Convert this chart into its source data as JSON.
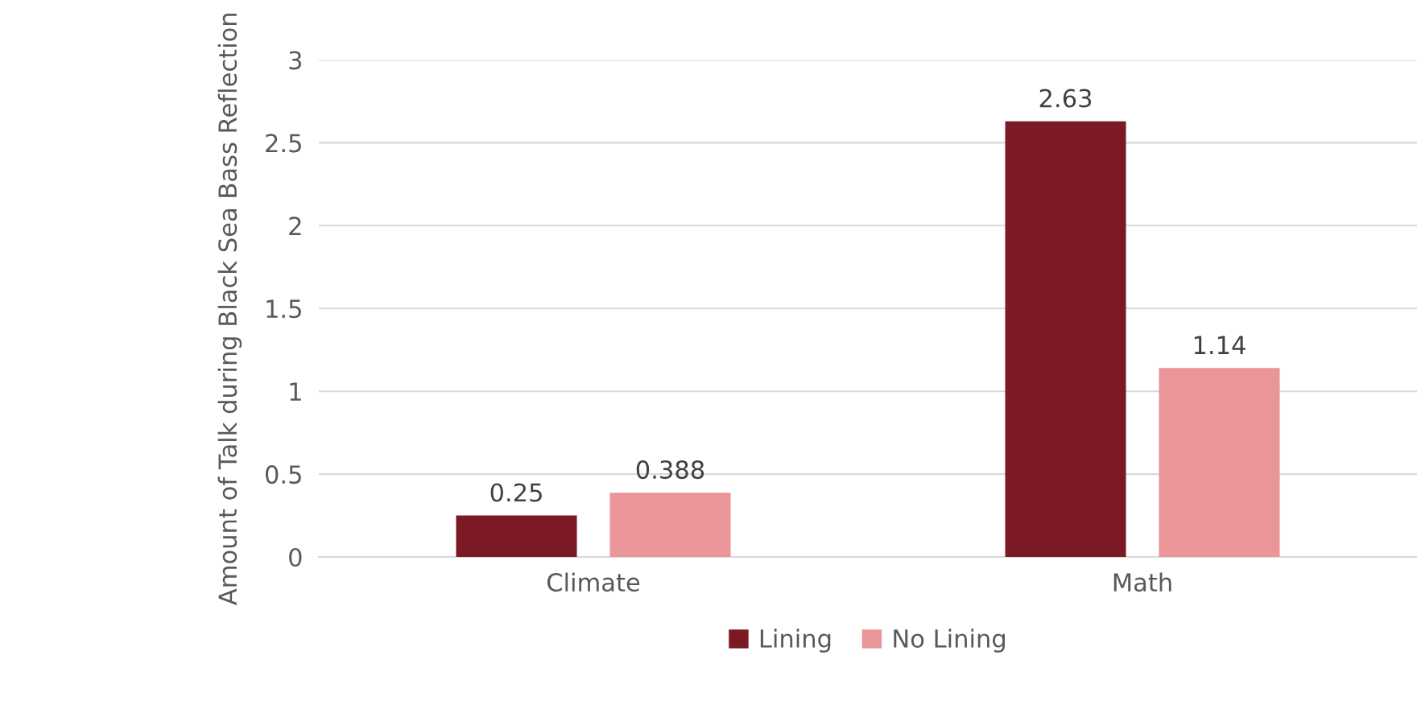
{
  "chart_data": {
    "type": "bar",
    "ylabel": "Amount of Talk during Black Sea Bass Reflection",
    "categories": [
      "Climate",
      "Math"
    ],
    "series": [
      {
        "name": "Lining",
        "color": "#7b1a25",
        "values": [
          0.25,
          2.63
        ]
      },
      {
        "name": "No Lining",
        "color": "#ea9597",
        "values": [
          0.388,
          1.14
        ]
      }
    ],
    "ylim": [
      0,
      3
    ],
    "yticks": [
      0,
      0.5,
      1,
      1.5,
      2,
      2.5,
      3
    ],
    "grid": "y",
    "legend": "bottom",
    "data_labels": true
  }
}
